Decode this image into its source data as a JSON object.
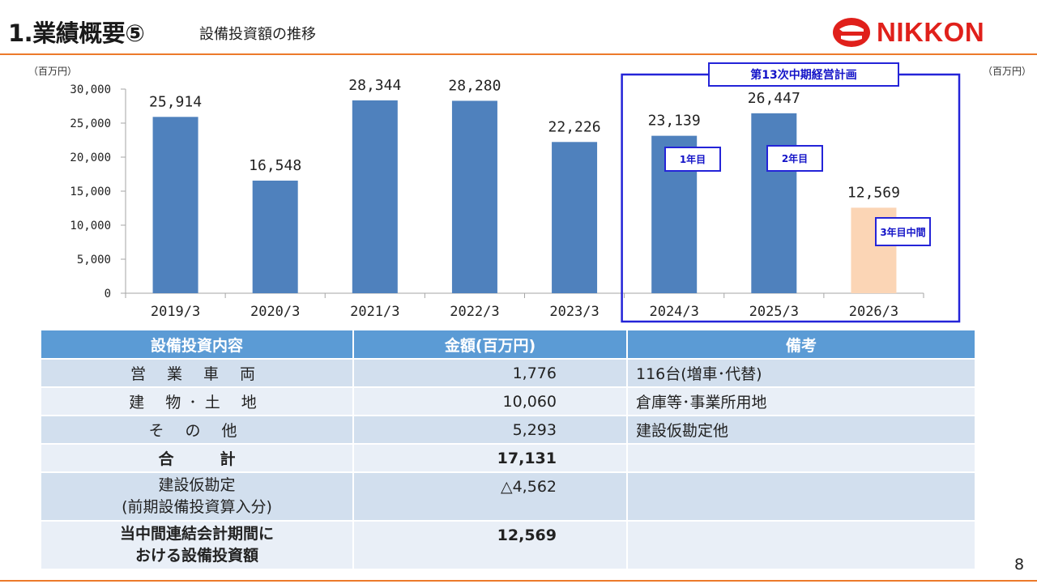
{
  "header": {
    "title": "1.業績概要⑤",
    "subtitle": "設備投資額の推移",
    "logo_text": "NIKKON"
  },
  "units": {
    "left": "（百万円）",
    "right": "（百万円）"
  },
  "plan": {
    "label": "第13次中期経営計画",
    "tags": [
      "1年目",
      "2年目",
      "3年目中間"
    ]
  },
  "chart_data": {
    "type": "bar",
    "categories": [
      "2019/3",
      "2020/3",
      "2021/3",
      "2022/3",
      "2023/3",
      "2024/3",
      "2025/3",
      "2026/3"
    ],
    "values": [
      25914,
      16548,
      28344,
      28280,
      22226,
      23139,
      26447,
      12569
    ],
    "value_labels": [
      "25,914",
      "16,548",
      "28,344",
      "28,280",
      "22,226",
      "23,139",
      "26,447",
      "12,569"
    ],
    "y_ticks": [
      "0",
      "5,000",
      "10,000",
      "15,000",
      "20,000",
      "25,000",
      "30,000"
    ],
    "ylim": [
      0,
      30000
    ],
    "colors": {
      "actual": "#4f81bd",
      "interim": "#fbd5b5"
    },
    "grid": false
  },
  "table": {
    "headers": [
      "設備投資内容",
      "金額(百万円)",
      "備考"
    ],
    "rows": [
      {
        "item": "営 業 車 両",
        "amount": "1,776",
        "note": "116台(増車･代替)"
      },
      {
        "item": "建 物･土 地",
        "amount": "10,060",
        "note": "倉庫等･事業所用地"
      },
      {
        "item": "そ の 他",
        "amount": "5,293",
        "note": "建設仮勘定他"
      },
      {
        "item": "合　　　計",
        "amount": "17,131",
        "note": ""
      },
      {
        "item_line1": "建設仮勘定",
        "item_line2": "(前期設備投資算入分)",
        "amount": "△4,562",
        "note": ""
      },
      {
        "item_line1": "当中間連結会計期間に",
        "item_line2": "おける設備投資額",
        "amount": "12,569",
        "note": ""
      }
    ]
  },
  "page_number": "8"
}
